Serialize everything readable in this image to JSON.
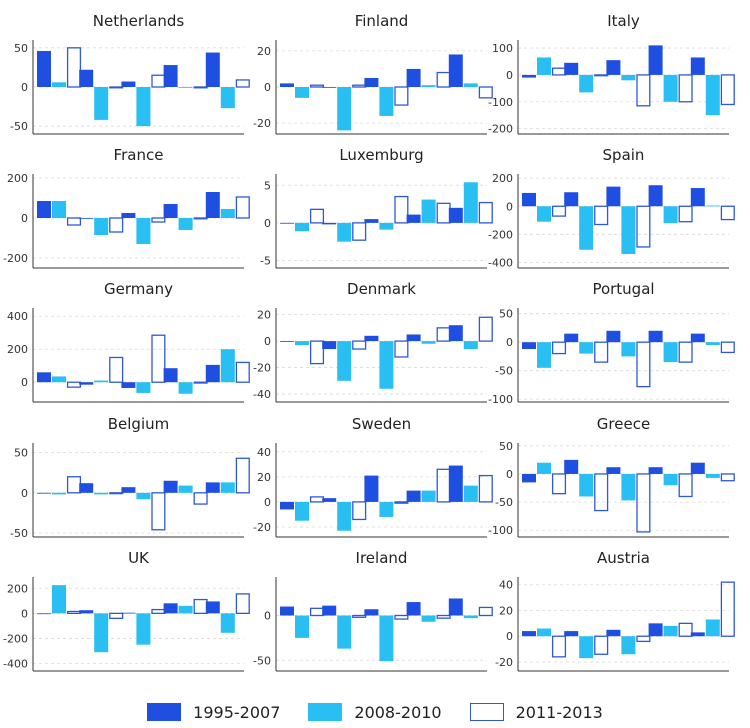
{
  "chart_data": {
    "type": "bar",
    "layout": "small-multiples",
    "series": [
      {
        "name": "1995-2007",
        "color": "#1f4fe0",
        "fill": true
      },
      {
        "name": "2008-2010",
        "color": "#29bff2",
        "fill": true
      },
      {
        "name": "2011-2013",
        "color": "#2f58d8",
        "fill": false
      }
    ],
    "panels": [
      {
        "title": "Netherlands",
        "ylim": [
          -60,
          60
        ],
        "yticks": [
          -50,
          0,
          50
        ],
        "values": [
          [
            46,
            6,
            50
          ],
          [
            22,
            -42,
            0
          ],
          [
            7,
            -50,
            15
          ],
          [
            28,
            0,
            0
          ],
          [
            44,
            -27,
            9
          ]
        ]
      },
      {
        "title": "Finland",
        "ylim": [
          -26,
          26
        ],
        "yticks": [
          -20,
          0,
          20
        ],
        "values": [
          [
            2,
            -6,
            1
          ],
          [
            0,
            -24,
            1
          ],
          [
            5,
            -16,
            -10
          ],
          [
            10,
            1,
            8
          ],
          [
            18,
            2,
            -6
          ]
        ]
      },
      {
        "title": "Italy",
        "ylim": [
          -220,
          130
        ],
        "yticks": [
          -200,
          -100,
          0,
          100
        ],
        "values": [
          [
            -10,
            65,
            25
          ],
          [
            45,
            -65,
            0
          ],
          [
            55,
            -20,
            -115
          ],
          [
            110,
            -100,
            -100
          ],
          [
            65,
            -150,
            -110
          ]
        ]
      },
      {
        "title": "France",
        "ylim": [
          -250,
          220
        ],
        "yticks": [
          -200,
          0,
          200
        ],
        "values": [
          [
            85,
            85,
            -35
          ],
          [
            0,
            -85,
            -70
          ],
          [
            25,
            -130,
            -20
          ],
          [
            70,
            -60,
            0
          ],
          [
            130,
            45,
            105
          ]
        ]
      },
      {
        "title": "Luxemburg",
        "ylim": [
          -6,
          6.5
        ],
        "yticks": [
          -5,
          0,
          5
        ],
        "values": [
          [
            0,
            -1.1,
            1.8
          ],
          [
            -0.2,
            -2.5,
            -2.3
          ],
          [
            0.5,
            -0.9,
            3.5
          ],
          [
            1.1,
            3.1,
            2.6
          ],
          [
            2,
            5.4,
            2.7
          ]
        ]
      },
      {
        "title": "Spain",
        "ylim": [
          -440,
          230
        ],
        "yticks": [
          -400,
          -200,
          0,
          200
        ],
        "values": [
          [
            95,
            -110,
            -70
          ],
          [
            100,
            -310,
            -130
          ],
          [
            140,
            -340,
            -290
          ],
          [
            150,
            -120,
            -110
          ],
          [
            130,
            5,
            -95
          ]
        ]
      },
      {
        "title": "Germany",
        "ylim": [
          -120,
          450
        ],
        "yticks": [
          0,
          200,
          400
        ],
        "values": [
          [
            60,
            35,
            -30
          ],
          [
            -15,
            10,
            150
          ],
          [
            -35,
            -65,
            285
          ],
          [
            85,
            -70,
            0
          ],
          [
            105,
            200,
            120
          ]
        ]
      },
      {
        "title": "Denmark",
        "ylim": [
          -46,
          25
        ],
        "yticks": [
          -40,
          -20,
          0,
          20
        ],
        "values": [
          [
            0,
            -3,
            -17
          ],
          [
            -6,
            -30,
            -6
          ],
          [
            4,
            -36,
            -12
          ],
          [
            5,
            -2,
            10
          ],
          [
            12,
            -6,
            18
          ]
        ]
      },
      {
        "title": "Portugal",
        "ylim": [
          -105,
          60
        ],
        "yticks": [
          -100,
          -50,
          0,
          50
        ],
        "values": [
          [
            -12,
            -45,
            -20
          ],
          [
            15,
            -20,
            -35
          ],
          [
            20,
            -25,
            -78
          ],
          [
            20,
            -35,
            -35
          ],
          [
            15,
            -5,
            -18
          ]
        ]
      },
      {
        "title": "Belgium",
        "ylim": [
          -55,
          62
        ],
        "yticks": [
          -50,
          0,
          50
        ],
        "values": [
          [
            -1,
            -2,
            20
          ],
          [
            12,
            -2,
            -1
          ],
          [
            7,
            -8,
            -46
          ],
          [
            15,
            9,
            -14
          ],
          [
            13,
            13,
            43
          ]
        ]
      },
      {
        "title": "Sweden",
        "ylim": [
          -28,
          47
        ],
        "yticks": [
          -20,
          0,
          20,
          40
        ],
        "values": [
          [
            -6,
            -15,
            4
          ],
          [
            3,
            -23,
            -14
          ],
          [
            21,
            -12,
            -1
          ],
          [
            9,
            9,
            26
          ],
          [
            29,
            13,
            21
          ]
        ]
      },
      {
        "title": "Greece",
        "ylim": [
          -112,
          55
        ],
        "yticks": [
          -100,
          -50,
          0,
          50
        ],
        "values": [
          [
            -15,
            20,
            -35
          ],
          [
            25,
            -40,
            -65
          ],
          [
            12,
            -47,
            -103
          ],
          [
            12,
            -20,
            -40
          ],
          [
            20,
            -7,
            -12
          ]
        ]
      },
      {
        "title": "UK",
        "ylim": [
          -460,
          290
        ],
        "yticks": [
          -400,
          -200,
          0,
          200
        ],
        "values": [
          [
            0,
            225,
            15
          ],
          [
            25,
            -310,
            -40
          ],
          [
            5,
            -250,
            30
          ],
          [
            80,
            60,
            110
          ],
          [
            95,
            -155,
            155
          ]
        ]
      },
      {
        "title": "Ireland",
        "ylim": [
          -62,
          43
        ],
        "yticks": [
          -50,
          0
        ],
        "values": [
          [
            10,
            -25,
            8
          ],
          [
            11,
            -37,
            -2
          ],
          [
            7,
            -51,
            -4
          ],
          [
            15,
            -7,
            -3
          ],
          [
            19,
            -3,
            9
          ]
        ]
      },
      {
        "title": "Austria",
        "ylim": [
          -27,
          46
        ],
        "yticks": [
          -20,
          0,
          20,
          40
        ],
        "values": [
          [
            4,
            6,
            -16
          ],
          [
            4,
            -17,
            -14
          ],
          [
            5,
            -14,
            -4
          ],
          [
            10,
            8,
            10
          ],
          [
            3,
            13,
            42
          ]
        ]
      }
    ]
  }
}
